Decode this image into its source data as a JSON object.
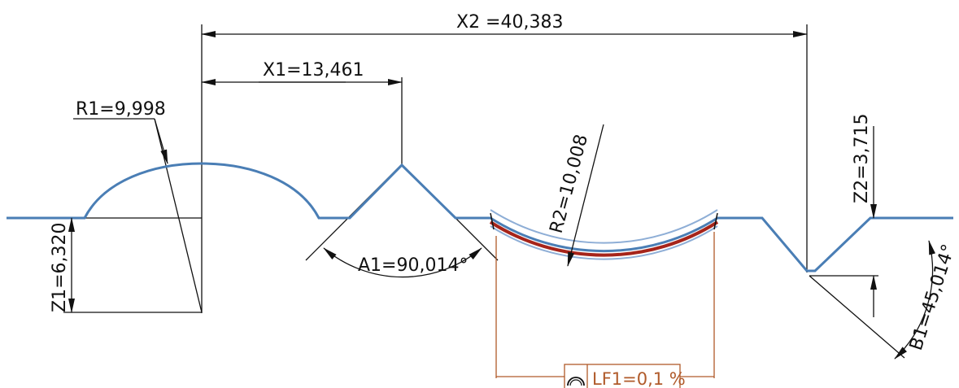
{
  "colors": {
    "profile": "#4a7eb5",
    "tolerance_band": "#8eaed6",
    "tolerance_measured": "#a6241a",
    "dimension_lines": "#111111",
    "form_box": "#b05a2a"
  },
  "dimensions": {
    "x2": "X2 =40,383",
    "x1": "X1=13,461",
    "r1": "R1=9,998",
    "r2": "R2=10,008",
    "z1": "Z1=6,320",
    "z2": "Z2=3,715",
    "a1": "A1=90,014°",
    "b1": "B1=45,014°"
  },
  "form_tolerance": {
    "icon": "profile-arc-icon",
    "label": "LF1=0,1 %"
  }
}
